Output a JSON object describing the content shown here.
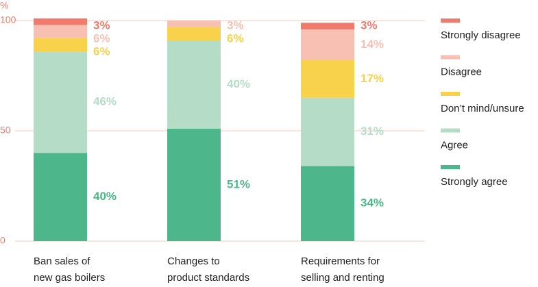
{
  "chart_data": {
    "type": "stacked_bar",
    "y_label": "%",
    "categories": [
      [
        "Ban sales of",
        "new gas boilers"
      ],
      [
        "Changes to",
        "product standards"
      ],
      [
        "Requirements for",
        "selling and renting"
      ]
    ],
    "series": [
      {
        "name": "Strongly agree",
        "color": "#4db68a",
        "values": [
          40,
          51,
          34
        ],
        "value_labels": [
          "40%",
          "51%",
          "34%"
        ]
      },
      {
        "name": "Agree",
        "color": "#b5dcc7",
        "values": [
          46,
          40,
          31
        ],
        "value_labels": [
          "46%",
          "40%",
          "31%"
        ]
      },
      {
        "name": "Don’t mind/unsure",
        "color": "#f7d24a",
        "values": [
          6,
          6,
          17
        ],
        "value_labels": [
          "6%",
          "6%",
          "17%"
        ]
      },
      {
        "name": "Disagree",
        "color": "#f7c0b3",
        "values": [
          6,
          3,
          14
        ],
        "value_labels": [
          "6%",
          "3%",
          "14%"
        ]
      },
      {
        "name": "Strongly disagree",
        "color": "#f07b6c",
        "values": [
          3,
          null,
          3
        ],
        "value_labels": [
          "3%",
          null,
          "3%"
        ]
      }
    ],
    "ylim": [
      0,
      100
    ],
    "yticks": [
      0,
      50,
      100
    ],
    "grid": true
  }
}
